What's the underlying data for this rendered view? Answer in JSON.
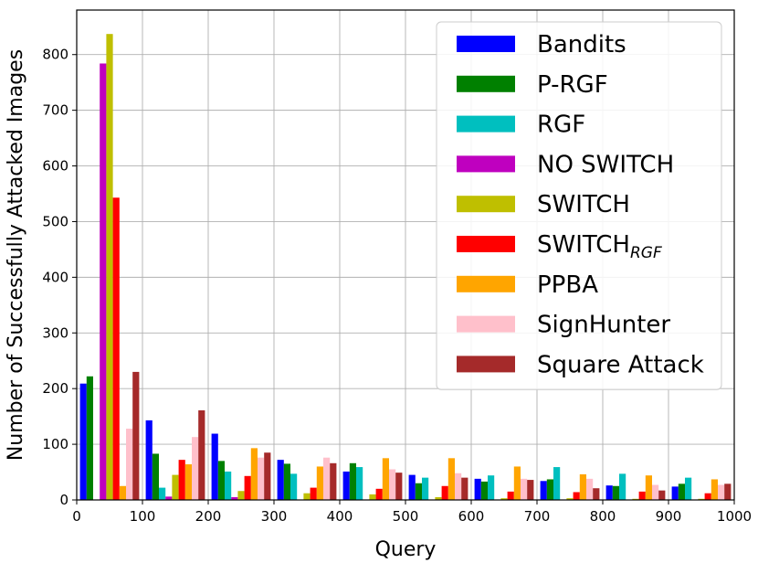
{
  "chart_data": {
    "type": "bar",
    "xlabel": "Query",
    "ylabel": "Number of Successfully Attacked Images",
    "xlim": [
      0,
      1000
    ],
    "ylim": [
      0,
      880
    ],
    "x_ticks": [
      0,
      100,
      200,
      300,
      400,
      500,
      600,
      700,
      800,
      900,
      1000
    ],
    "y_ticks": [
      0,
      100,
      200,
      300,
      400,
      500,
      600,
      700,
      800
    ],
    "grid": true,
    "legend_position": "top-right",
    "bin_width": 100,
    "bin_starts": [
      0,
      100,
      200,
      300,
      400,
      500,
      600,
      700,
      800,
      900
    ],
    "series": [
      {
        "name": "Bandits",
        "legend_main": "Bandits",
        "legend_sub": "",
        "color": "#0000ff",
        "values": [
          209,
          143,
          119,
          72,
          51,
          45,
          38,
          34,
          26,
          24
        ]
      },
      {
        "name": "P-RGF",
        "legend_main": "P-RGF",
        "legend_sub": "",
        "color": "#008000",
        "values": [
          222,
          83,
          70,
          65,
          66,
          30,
          33,
          37,
          25,
          29
        ]
      },
      {
        "name": "RGF",
        "legend_main": "RGF",
        "legend_sub": "",
        "color": "#00bfbf",
        "values": [
          0,
          22,
          51,
          47,
          59,
          40,
          44,
          59,
          47,
          40
        ]
      },
      {
        "name": "NO SWITCH",
        "legend_main": "NO SWITCH",
        "legend_sub": "",
        "color": "#bf00bf",
        "values": [
          784,
          6,
          5,
          0,
          0,
          0,
          0,
          0,
          0,
          0
        ]
      },
      {
        "name": "SWITCH",
        "legend_main": "SWITCH",
        "legend_sub": "",
        "color": "#bfbf00",
        "values": [
          837,
          45,
          16,
          12,
          10,
          5,
          3,
          3,
          2,
          2
        ]
      },
      {
        "name": "SWITCH_RGF",
        "legend_main": "SWITCH",
        "legend_sub": "RGF",
        "color": "#ff0000",
        "values": [
          543,
          72,
          43,
          22,
          20,
          25,
          15,
          14,
          15,
          12
        ]
      },
      {
        "name": "PPBA",
        "legend_main": "PPBA",
        "legend_sub": "",
        "color": "#ffa500",
        "values": [
          25,
          64,
          93,
          60,
          75,
          75,
          60,
          46,
          44,
          37
        ]
      },
      {
        "name": "SignHunter",
        "legend_main": "SignHunter",
        "legend_sub": "",
        "color": "#ffc0cb",
        "values": [
          128,
          113,
          76,
          76,
          55,
          48,
          38,
          38,
          27,
          27
        ]
      },
      {
        "name": "Square Attack",
        "legend_main": "Square Attack",
        "legend_sub": "",
        "color": "#a52a2a",
        "values": [
          230,
          161,
          85,
          66,
          49,
          40,
          36,
          21,
          17,
          29
        ]
      }
    ]
  }
}
